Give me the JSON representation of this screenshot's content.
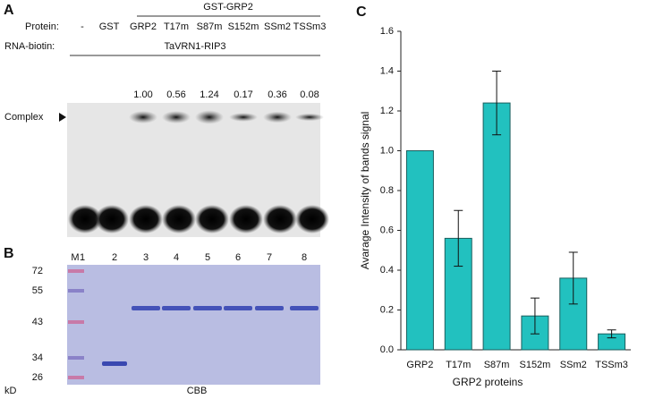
{
  "panel_a": {
    "letter": "A",
    "protein_label": "Protein:",
    "group_label": "GST-GRP2",
    "lanes": [
      "-",
      "GST",
      "GRP2",
      "T17m",
      "S87m",
      "S152m",
      "SSm2",
      "TSSm3"
    ],
    "rna_label": "RNA-biotin:",
    "rna_name": "TaVRN1-RIP3",
    "intensities": [
      "1.00",
      "0.56",
      "1.24",
      "0.17",
      "0.36",
      "0.08"
    ],
    "complex_label": "Complex"
  },
  "panel_b": {
    "letter": "B",
    "lanes": [
      "M",
      "1",
      "2",
      "3",
      "4",
      "5",
      "6",
      "7",
      "8"
    ],
    "markers": [
      "72",
      "55",
      "43",
      "34",
      "26"
    ],
    "unit": "kD",
    "stain": "CBB"
  },
  "chart_data": {
    "type": "bar",
    "letter": "C",
    "x_label": "GRP2 proteins",
    "y_label": "Avarage Intensity of bands signal",
    "categories": [
      "GRP2",
      "T17m",
      "S87m",
      "S152m",
      "SSm2",
      "TSSm3"
    ],
    "values": [
      1.0,
      0.56,
      1.24,
      0.17,
      0.36,
      0.08
    ],
    "errors": [
      null,
      0.14,
      0.16,
      0.09,
      0.13,
      0.02
    ],
    "color": "#22c1bf",
    "ylim": [
      0,
      1.6
    ],
    "yticks": [
      {
        "value": 0,
        "label": "0.0"
      },
      0.2,
      0.4,
      0.6,
      0.8,
      {
        "value": 1,
        "label": "1.0"
      },
      1.2,
      1.4,
      1.6
    ]
  }
}
